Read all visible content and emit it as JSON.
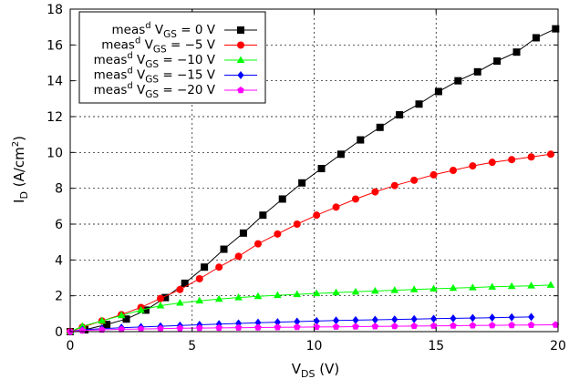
{
  "chart_data": {
    "type": "line",
    "x_label": {
      "main": "V",
      "sub": "DS",
      "unit": " (V)"
    },
    "y_label": {
      "main": "I",
      "sub": "D",
      "unit_prefix": " (A/cm",
      "unit_sup": "2",
      "unit_suffix": ")"
    },
    "xlim": [
      0,
      20
    ],
    "ylim": [
      0,
      18
    ],
    "x_ticks": [
      0,
      5,
      10,
      15,
      20
    ],
    "y_ticks": [
      0,
      2,
      4,
      6,
      8,
      10,
      12,
      14,
      16,
      18
    ],
    "grid": true,
    "legend_position": "top-left",
    "series": [
      {
        "name": "meas^d V_GS = 0 V",
        "legend": {
          "pre": "meas",
          "sup": "d",
          "v": " V",
          "sub": "GS",
          "rest": " = 0 V"
        },
        "color": "#000000",
        "marker": "square",
        "x": [
          0,
          0.6,
          1.5,
          2.3,
          3.1,
          3.9,
          4.7,
          5.5,
          6.3,
          7.1,
          7.9,
          8.7,
          9.5,
          10.3,
          11.1,
          11.9,
          12.7,
          13.5,
          14.3,
          15.1,
          15.9,
          16.7,
          17.5,
          18.3,
          19.1,
          19.9
        ],
        "y": [
          0,
          0.1,
          0.4,
          0.7,
          1.2,
          1.9,
          2.7,
          3.6,
          4.6,
          5.5,
          6.5,
          7.4,
          8.3,
          9.1,
          9.9,
          10.7,
          11.4,
          12.1,
          12.7,
          13.4,
          14.0,
          14.5,
          15.1,
          15.6,
          16.4,
          16.9
        ]
      },
      {
        "name": "meas^d V_GS = -5 V",
        "legend": {
          "pre": "meas",
          "sup": "d",
          "v": " V",
          "sub": "GS",
          "rest": " = −5 V"
        },
        "color": "#ff0000",
        "marker": "circle",
        "x": [
          0,
          0.5,
          1.3,
          2.1,
          2.9,
          3.7,
          4.5,
          5.3,
          6.1,
          6.9,
          7.7,
          8.5,
          9.3,
          10.1,
          10.9,
          11.7,
          12.5,
          13.3,
          14.1,
          14.9,
          15.7,
          16.5,
          17.3,
          18.1,
          18.9,
          19.7
        ],
        "y": [
          0,
          0.25,
          0.6,
          0.95,
          1.35,
          1.85,
          2.35,
          2.95,
          3.6,
          4.2,
          4.9,
          5.45,
          6.0,
          6.5,
          6.95,
          7.4,
          7.8,
          8.15,
          8.45,
          8.75,
          9.0,
          9.25,
          9.45,
          9.6,
          9.75,
          9.9
        ]
      },
      {
        "name": "meas^d V_GS = -10 V",
        "legend": {
          "pre": "meas",
          "sup": "d",
          "v": " V",
          "sub": "GS",
          "rest": " = −10 V"
        },
        "color": "#00ff00",
        "marker": "triangle",
        "x": [
          0,
          0.5,
          1.3,
          2.1,
          2.9,
          3.7,
          4.5,
          5.3,
          6.1,
          6.9,
          7.7,
          8.5,
          9.3,
          10.1,
          10.9,
          11.7,
          12.5,
          13.3,
          14.1,
          14.9,
          15.7,
          16.5,
          17.3,
          18.1,
          18.9,
          19.7
        ],
        "y": [
          0,
          0.3,
          0.6,
          0.9,
          1.2,
          1.45,
          1.6,
          1.72,
          1.82,
          1.9,
          1.97,
          2.03,
          2.08,
          2.13,
          2.18,
          2.22,
          2.27,
          2.31,
          2.35,
          2.39,
          2.43,
          2.46,
          2.5,
          2.53,
          2.56,
          2.6
        ]
      },
      {
        "name": "meas^d V_GS = -15 V",
        "legend": {
          "pre": "meas",
          "sup": "d",
          "v": " V",
          "sub": "GS",
          "rest": " = −15 V"
        },
        "color": "#0000ff",
        "marker": "diamond",
        "x": [
          0,
          0.5,
          1.3,
          2.1,
          2.9,
          3.7,
          4.5,
          5.3,
          6.1,
          6.9,
          7.7,
          8.5,
          9.3,
          10.1,
          10.9,
          11.7,
          12.5,
          13.3,
          14.1,
          14.9,
          15.7,
          16.5,
          17.3,
          18.1,
          18.9
        ],
        "y": [
          0,
          0.1,
          0.17,
          0.22,
          0.26,
          0.3,
          0.34,
          0.38,
          0.42,
          0.46,
          0.5,
          0.53,
          0.56,
          0.59,
          0.62,
          0.64,
          0.66,
          0.68,
          0.7,
          0.72,
          0.74,
          0.76,
          0.78,
          0.8,
          0.82
        ]
      },
      {
        "name": "meas^d V_GS = -20 V",
        "legend": {
          "pre": "meas",
          "sup": "d",
          "v": " V",
          "sub": "GS",
          "rest": " = −20 V"
        },
        "color": "#ff00ff",
        "marker": "pentagon",
        "x": [
          0,
          0.5,
          1.3,
          2.1,
          2.9,
          3.7,
          4.5,
          5.3,
          6.1,
          6.9,
          7.7,
          8.5,
          9.3,
          10.1,
          10.9,
          11.7,
          12.5,
          13.3,
          14.1,
          14.9,
          15.7,
          16.5,
          17.3,
          18.1,
          18.9,
          19.9
        ],
        "y": [
          0,
          0.06,
          0.1,
          0.13,
          0.15,
          0.17,
          0.19,
          0.2,
          0.21,
          0.22,
          0.23,
          0.24,
          0.25,
          0.26,
          0.27,
          0.28,
          0.29,
          0.3,
          0.31,
          0.32,
          0.33,
          0.34,
          0.35,
          0.36,
          0.37,
          0.38
        ]
      }
    ]
  }
}
